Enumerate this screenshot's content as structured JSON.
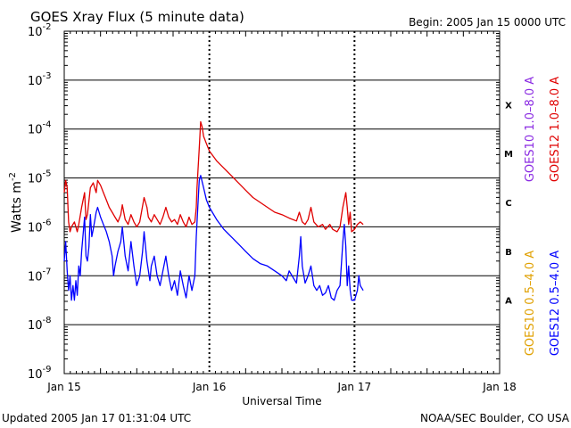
{
  "chart_data": {
    "type": "line",
    "title": "GOES Xray Flux (5 minute data)",
    "begin_label": "Begin:  2005 Jan 15 0000 UTC",
    "xlabel": "Universal Time",
    "ylabel": "Watts m",
    "ylabel_exp": "-2",
    "x_unit": "days since 2005 Jan 15 0000 UTC",
    "xlim": [
      0,
      3
    ],
    "x_ticks": [
      {
        "x": 0,
        "label": "Jan 15"
      },
      {
        "x": 1,
        "label": "Jan 16"
      },
      {
        "x": 2,
        "label": "Jan 17"
      },
      {
        "x": 3,
        "label": "Jan 18"
      }
    ],
    "y_scale": "log10",
    "ylim_exp": [
      -9,
      -2
    ],
    "y_ticks": [
      {
        "exp": -2,
        "base": "10",
        "sup": "-2"
      },
      {
        "exp": -3,
        "base": "10",
        "sup": "-3"
      },
      {
        "exp": -4,
        "base": "10",
        "sup": "-4"
      },
      {
        "exp": -5,
        "base": "10",
        "sup": "-5"
      },
      {
        "exp": -6,
        "base": "10",
        "sup": "-6"
      },
      {
        "exp": -7,
        "base": "10",
        "sup": "-7"
      },
      {
        "exp": -8,
        "base": "10",
        "sup": "-8"
      },
      {
        "exp": -9,
        "base": "10",
        "sup": "-9"
      }
    ],
    "class_labels": [
      {
        "label": "X",
        "band_exp": [
          -4,
          -3
        ]
      },
      {
        "label": "M",
        "band_exp": [
          -5,
          -4
        ]
      },
      {
        "label": "C",
        "band_exp": [
          -6,
          -5
        ]
      },
      {
        "label": "B",
        "band_exp": [
          -7,
          -6
        ]
      },
      {
        "label": "A",
        "band_exp": [
          -8,
          -7
        ]
      }
    ],
    "series": [
      {
        "name": "GOES12 1.0-8.0 A",
        "color": "#e00000",
        "points": [
          [
            0.0,
            -5.3
          ],
          [
            0.01,
            -5.05
          ],
          [
            0.02,
            -5.2
          ],
          [
            0.03,
            -5.9
          ],
          [
            0.04,
            -6.1
          ],
          [
            0.05,
            -6.0
          ],
          [
            0.07,
            -5.9
          ],
          [
            0.08,
            -6.0
          ],
          [
            0.09,
            -6.1
          ],
          [
            0.1,
            -5.95
          ],
          [
            0.12,
            -5.6
          ],
          [
            0.14,
            -5.3
          ],
          [
            0.15,
            -5.85
          ],
          [
            0.16,
            -5.75
          ],
          [
            0.18,
            -5.2
          ],
          [
            0.2,
            -5.1
          ],
          [
            0.22,
            -5.3
          ],
          [
            0.23,
            -5.05
          ],
          [
            0.25,
            -5.15
          ],
          [
            0.27,
            -5.3
          ],
          [
            0.29,
            -5.45
          ],
          [
            0.31,
            -5.6
          ],
          [
            0.33,
            -5.7
          ],
          [
            0.35,
            -5.8
          ],
          [
            0.37,
            -5.9
          ],
          [
            0.39,
            -5.75
          ],
          [
            0.4,
            -5.55
          ],
          [
            0.42,
            -5.85
          ],
          [
            0.44,
            -5.95
          ],
          [
            0.46,
            -5.75
          ],
          [
            0.48,
            -5.9
          ],
          [
            0.5,
            -6.0
          ],
          [
            0.52,
            -5.9
          ],
          [
            0.55,
            -5.4
          ],
          [
            0.57,
            -5.6
          ],
          [
            0.58,
            -5.8
          ],
          [
            0.6,
            -5.9
          ],
          [
            0.62,
            -5.75
          ],
          [
            0.64,
            -5.85
          ],
          [
            0.66,
            -5.95
          ],
          [
            0.68,
            -5.8
          ],
          [
            0.7,
            -5.6
          ],
          [
            0.72,
            -5.8
          ],
          [
            0.74,
            -5.9
          ],
          [
            0.76,
            -5.85
          ],
          [
            0.78,
            -5.95
          ],
          [
            0.8,
            -5.75
          ],
          [
            0.82,
            -5.9
          ],
          [
            0.84,
            -6.0
          ],
          [
            0.86,
            -5.8
          ],
          [
            0.88,
            -5.95
          ],
          [
            0.9,
            -5.9
          ],
          [
            0.91,
            -5.6
          ],
          [
            0.915,
            -5.2
          ],
          [
            0.93,
            -4.4
          ],
          [
            0.94,
            -3.85
          ],
          [
            0.95,
            -3.95
          ],
          [
            0.96,
            -4.15
          ],
          [
            0.98,
            -4.3
          ],
          [
            1.0,
            -4.45
          ],
          [
            1.05,
            -4.65
          ],
          [
            1.1,
            -4.8
          ],
          [
            1.15,
            -4.95
          ],
          [
            1.2,
            -5.1
          ],
          [
            1.25,
            -5.25
          ],
          [
            1.3,
            -5.4
          ],
          [
            1.35,
            -5.5
          ],
          [
            1.4,
            -5.6
          ],
          [
            1.45,
            -5.7
          ],
          [
            1.5,
            -5.75
          ],
          [
            1.55,
            -5.82
          ],
          [
            1.6,
            -5.88
          ],
          [
            1.62,
            -5.7
          ],
          [
            1.64,
            -5.9
          ],
          [
            1.66,
            -5.95
          ],
          [
            1.68,
            -5.85
          ],
          [
            1.7,
            -5.6
          ],
          [
            1.72,
            -5.9
          ],
          [
            1.75,
            -6.0
          ],
          [
            1.78,
            -5.95
          ],
          [
            1.8,
            -6.05
          ],
          [
            1.83,
            -5.95
          ],
          [
            1.85,
            -6.05
          ],
          [
            1.88,
            -6.1
          ],
          [
            1.9,
            -6.0
          ],
          [
            1.92,
            -5.6
          ],
          [
            1.94,
            -5.3
          ],
          [
            1.95,
            -5.6
          ],
          [
            1.96,
            -5.95
          ],
          [
            1.97,
            -5.7
          ],
          [
            1.98,
            -6.1
          ],
          [
            2.0,
            -6.05
          ],
          [
            2.02,
            -5.95
          ],
          [
            2.04,
            -5.9
          ],
          [
            2.06,
            -5.95
          ]
        ]
      },
      {
        "name": "GOES12 0.5-4.0 A",
        "color": "#0000ff",
        "points": [
          [
            0.0,
            -6.7
          ],
          [
            0.01,
            -6.3
          ],
          [
            0.02,
            -6.9
          ],
          [
            0.03,
            -7.3
          ],
          [
            0.04,
            -7.0
          ],
          [
            0.05,
            -7.5
          ],
          [
            0.06,
            -7.2
          ],
          [
            0.07,
            -7.5
          ],
          [
            0.08,
            -7.1
          ],
          [
            0.09,
            -7.4
          ],
          [
            0.1,
            -6.8
          ],
          [
            0.11,
            -7.0
          ],
          [
            0.12,
            -6.5
          ],
          [
            0.14,
            -5.8
          ],
          [
            0.15,
            -6.6
          ],
          [
            0.16,
            -6.7
          ],
          [
            0.17,
            -6.4
          ],
          [
            0.18,
            -5.75
          ],
          [
            0.19,
            -6.2
          ],
          [
            0.2,
            -6.05
          ],
          [
            0.22,
            -5.7
          ],
          [
            0.23,
            -5.6
          ],
          [
            0.25,
            -5.8
          ],
          [
            0.27,
            -5.95
          ],
          [
            0.29,
            -6.1
          ],
          [
            0.31,
            -6.3
          ],
          [
            0.33,
            -6.6
          ],
          [
            0.34,
            -7.0
          ],
          [
            0.35,
            -6.8
          ],
          [
            0.37,
            -6.5
          ],
          [
            0.39,
            -6.3
          ],
          [
            0.4,
            -6.0
          ],
          [
            0.42,
            -6.6
          ],
          [
            0.44,
            -6.9
          ],
          [
            0.46,
            -6.3
          ],
          [
            0.48,
            -6.8
          ],
          [
            0.5,
            -7.2
          ],
          [
            0.52,
            -7.0
          ],
          [
            0.54,
            -6.5
          ],
          [
            0.55,
            -6.1
          ],
          [
            0.57,
            -6.7
          ],
          [
            0.59,
            -7.1
          ],
          [
            0.6,
            -6.8
          ],
          [
            0.62,
            -6.6
          ],
          [
            0.64,
            -7.0
          ],
          [
            0.66,
            -7.2
          ],
          [
            0.68,
            -6.9
          ],
          [
            0.7,
            -6.6
          ],
          [
            0.72,
            -7.0
          ],
          [
            0.74,
            -7.3
          ],
          [
            0.76,
            -7.1
          ],
          [
            0.78,
            -7.4
          ],
          [
            0.8,
            -6.9
          ],
          [
            0.82,
            -7.2
          ],
          [
            0.84,
            -7.45
          ],
          [
            0.86,
            -7.0
          ],
          [
            0.88,
            -7.3
          ],
          [
            0.9,
            -7.0
          ],
          [
            0.91,
            -6.2
          ],
          [
            0.92,
            -5.6
          ],
          [
            0.93,
            -5.05
          ],
          [
            0.94,
            -4.95
          ],
          [
            0.96,
            -5.2
          ],
          [
            0.98,
            -5.45
          ],
          [
            1.0,
            -5.6
          ],
          [
            1.05,
            -5.85
          ],
          [
            1.1,
            -6.05
          ],
          [
            1.15,
            -6.2
          ],
          [
            1.2,
            -6.35
          ],
          [
            1.25,
            -6.5
          ],
          [
            1.3,
            -6.65
          ],
          [
            1.35,
            -6.75
          ],
          [
            1.4,
            -6.8
          ],
          [
            1.45,
            -6.9
          ],
          [
            1.5,
            -7.0
          ],
          [
            1.53,
            -7.1
          ],
          [
            1.55,
            -6.9
          ],
          [
            1.58,
            -7.05
          ],
          [
            1.6,
            -7.15
          ],
          [
            1.62,
            -6.6
          ],
          [
            1.63,
            -6.2
          ],
          [
            1.64,
            -6.8
          ],
          [
            1.66,
            -7.15
          ],
          [
            1.68,
            -7.0
          ],
          [
            1.7,
            -6.8
          ],
          [
            1.72,
            -7.2
          ],
          [
            1.74,
            -7.3
          ],
          [
            1.76,
            -7.2
          ],
          [
            1.78,
            -7.4
          ],
          [
            1.8,
            -7.35
          ],
          [
            1.82,
            -7.2
          ],
          [
            1.84,
            -7.45
          ],
          [
            1.86,
            -7.5
          ],
          [
            1.88,
            -7.3
          ],
          [
            1.9,
            -7.2
          ],
          [
            1.92,
            -6.3
          ],
          [
            1.93,
            -5.95
          ],
          [
            1.94,
            -6.4
          ],
          [
            1.95,
            -7.2
          ],
          [
            1.96,
            -6.8
          ],
          [
            1.97,
            -7.3
          ],
          [
            1.98,
            -7.5
          ],
          [
            2.0,
            -7.5
          ],
          [
            2.02,
            -7.3
          ],
          [
            2.03,
            -7.0
          ],
          [
            2.04,
            -7.2
          ],
          [
            2.06,
            -7.3
          ]
        ]
      }
    ],
    "legend": [
      {
        "label": "GOES10 1.0–8.0 A",
        "color": "#8a2be2",
        "position": "right-top"
      },
      {
        "label": "GOES12 1.0–8.0 A",
        "color": "#e00000",
        "position": "right-top"
      },
      {
        "label": "GOES10 0.5–4.0 A",
        "color": "#e0a000",
        "position": "right-bottom"
      },
      {
        "label": "GOES12 0.5–4.0 A",
        "color": "#0000ff",
        "position": "right-bottom"
      }
    ],
    "grid": true
  },
  "footer": {
    "updated": "Updated 2005 Jan 17 01:31:04 UTC",
    "source": "NOAA/SEC Boulder, CO USA"
  }
}
